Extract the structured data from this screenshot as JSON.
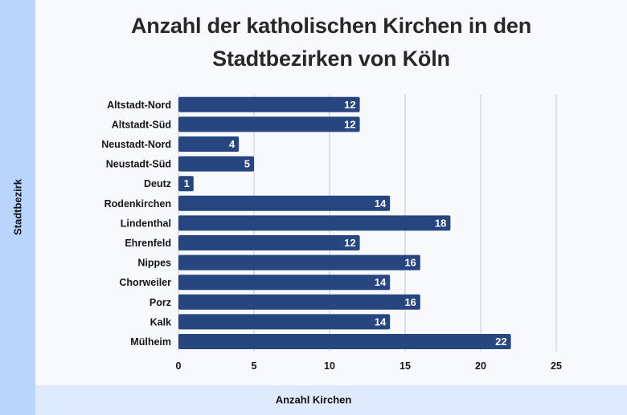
{
  "chart_data": {
    "type": "bar",
    "orientation": "horizontal",
    "title": "Anzahl der katholischen Kirchen in den Stadtbezirken von Köln",
    "title_lines": [
      "Anzahl der katholischen Kirchen in den",
      "Stadtbezirken von Köln"
    ],
    "xlabel": "Anzahl Kirchen",
    "ylabel": "Stadtbezirk",
    "categories": [
      "Altstadt-Nord",
      "Altstadt-Süd",
      "Neustadt-Nord",
      "Neustadt-Süd",
      "Deutz",
      "Rodenkirchen",
      "Lindenthal",
      "Ehrenfeld",
      "Nippes",
      "Chorweiler",
      "Porz",
      "Kalk",
      "Mülheim"
    ],
    "values": [
      12,
      12,
      4,
      5,
      1,
      14,
      18,
      12,
      16,
      14,
      16,
      14,
      22
    ],
    "xlim": [
      0,
      25
    ],
    "xticks": [
      0,
      5,
      10,
      15,
      20,
      25
    ],
    "grid": true,
    "data_labels": true,
    "bar_color": "#27467f",
    "legend": "none"
  }
}
